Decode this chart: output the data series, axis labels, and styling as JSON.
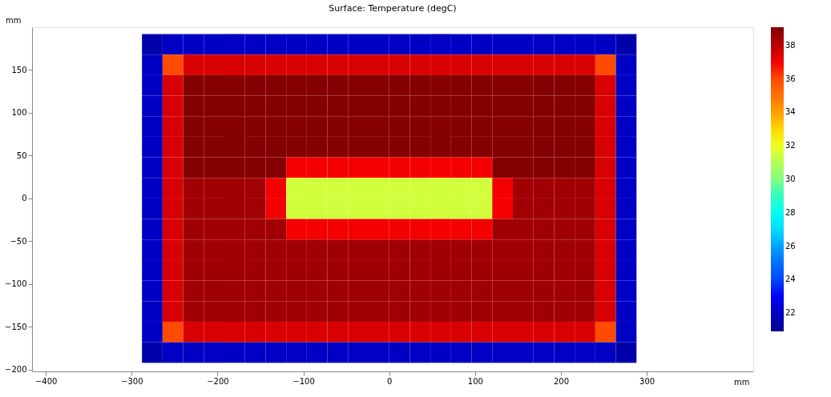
{
  "chart_data": {
    "type": "heatmap",
    "title": "Surface: Temperature (degC)",
    "xlabel": "mm",
    "ylabel": "mm",
    "x": [
      -276,
      -252,
      -228,
      -204,
      -180,
      -156,
      -132,
      -108,
      -84,
      -60,
      -36,
      -12,
      12,
      36,
      60,
      84,
      108,
      132,
      156,
      180,
      204,
      228,
      252,
      276
    ],
    "y": [
      180,
      156,
      132,
      108,
      84,
      60,
      36,
      12,
      -12,
      -36,
      -60,
      -84,
      -108,
      -132,
      -156,
      -180
    ],
    "cells": [
      [
        21.5,
        22,
        22,
        22,
        22,
        22,
        22,
        22,
        22,
        22,
        22,
        22,
        22,
        22,
        22,
        22,
        22,
        22,
        22,
        22,
        22,
        22,
        22,
        21.5
      ],
      [
        22,
        36,
        37.5,
        37.5,
        37.5,
        37.5,
        37.5,
        37.5,
        37.5,
        37.5,
        37.5,
        37.5,
        37.5,
        37.5,
        37.5,
        37.5,
        37.5,
        37.5,
        37.5,
        37.5,
        37.5,
        37.5,
        36,
        22
      ],
      [
        22,
        37.5,
        39,
        39,
        39,
        39,
        39,
        39,
        39,
        39,
        39,
        39,
        39,
        39,
        39,
        39,
        39,
        39,
        39,
        39,
        39,
        39,
        37.5,
        22
      ],
      [
        22,
        37.5,
        39,
        39,
        39,
        39,
        39,
        39,
        39,
        39,
        39,
        39,
        39,
        39,
        39,
        39,
        39,
        39,
        39,
        39,
        39,
        39,
        37.5,
        22
      ],
      [
        22,
        37.5,
        39,
        39,
        39,
        39,
        39,
        39,
        39,
        39,
        39,
        39,
        39,
        39,
        39,
        39,
        39,
        39,
        39,
        39,
        39,
        39,
        37.5,
        22
      ],
      [
        22,
        37.5,
        39,
        39,
        39,
        39,
        39,
        39,
        39,
        39,
        39,
        39,
        39,
        39,
        39,
        39,
        39,
        39,
        39,
        39,
        39,
        39,
        37.5,
        22
      ],
      [
        22,
        37.5,
        39,
        39,
        39,
        39,
        39,
        37,
        37,
        37,
        37,
        37,
        37,
        37,
        37,
        37,
        37,
        39,
        39,
        39,
        39,
        39,
        37.5,
        22
      ],
      [
        22,
        37.5,
        38.5,
        38.5,
        38.5,
        38.5,
        37,
        31.5,
        31.5,
        31.5,
        31.5,
        31.5,
        31.5,
        31.5,
        31.5,
        31.5,
        31.5,
        37,
        38.5,
        38.5,
        38.5,
        38.5,
        37.5,
        22
      ],
      [
        22,
        37.5,
        38.5,
        38.5,
        38.5,
        38.5,
        37,
        31.5,
        31.5,
        31.5,
        31.5,
        31.5,
        31.5,
        31.5,
        31.5,
        31.5,
        31.5,
        37,
        38.5,
        38.5,
        38.5,
        38.5,
        37.5,
        22
      ],
      [
        22,
        37.5,
        38.5,
        38.5,
        38.5,
        38.5,
        38.5,
        37,
        37,
        37,
        37,
        37,
        37,
        37,
        37,
        37,
        37,
        38.5,
        38.5,
        38.5,
        38.5,
        38.5,
        37.5,
        22
      ],
      [
        22,
        37.5,
        38.5,
        38.5,
        38.5,
        38.5,
        38.5,
        38.5,
        38.5,
        38.5,
        38.5,
        38.5,
        38.5,
        38.5,
        38.5,
        38.5,
        38.5,
        38.5,
        38.5,
        38.5,
        38.5,
        38.5,
        37.5,
        22
      ],
      [
        22,
        37.5,
        38.5,
        38.5,
        38.5,
        38.5,
        38.5,
        38.5,
        38.5,
        38.5,
        38.5,
        38.5,
        38.5,
        38.5,
        38.5,
        38.5,
        38.5,
        38.5,
        38.5,
        38.5,
        38.5,
        38.5,
        37.5,
        22
      ],
      [
        22,
        37.5,
        38.5,
        38.5,
        38.5,
        38.5,
        38.5,
        38.5,
        38.5,
        38.5,
        38.5,
        38.5,
        38.5,
        38.5,
        38.5,
        38.5,
        38.5,
        38.5,
        38.5,
        38.5,
        38.5,
        38.5,
        37.5,
        22
      ],
      [
        22,
        37.5,
        38.5,
        38.5,
        38.5,
        38.5,
        38.5,
        38.5,
        38.5,
        38.5,
        38.5,
        38.5,
        38.5,
        38.5,
        38.5,
        38.5,
        38.5,
        38.5,
        38.5,
        38.5,
        38.5,
        38.5,
        37.5,
        22
      ],
      [
        22,
        36,
        37.5,
        37.5,
        37.5,
        37.5,
        37.5,
        37.5,
        37.5,
        37.5,
        37.5,
        37.5,
        37.5,
        37.5,
        37.5,
        37.5,
        37.5,
        37.5,
        37.5,
        37.5,
        37.5,
        37.5,
        36,
        22
      ],
      [
        21.5,
        22,
        22,
        22,
        22,
        22,
        22,
        22,
        22,
        22,
        22,
        22,
        22,
        22,
        22,
        22,
        22,
        22,
        22,
        22,
        22,
        22,
        22,
        21.5
      ]
    ],
    "colors": [
      "#00008f",
      "#0000ff",
      "#0080ff",
      "#00ffff",
      "#80ff80",
      "#ffff00",
      "#ff8000",
      "#ff0000",
      "#800000"
    ],
    "clim": [
      20.9,
      39.1
    ],
    "cticks": [
      22,
      24,
      26,
      28,
      30,
      32,
      34,
      36,
      38
    ],
    "xlim": [
      -416,
      424
    ],
    "xticks": [
      -400,
      -300,
      -200,
      -100,
      0,
      100,
      200,
      300
    ],
    "ylim": [
      -202,
      200
    ],
    "yticks": [
      -200,
      -150,
      -100,
      -50,
      0,
      50,
      100,
      150
    ],
    "grid": false
  }
}
